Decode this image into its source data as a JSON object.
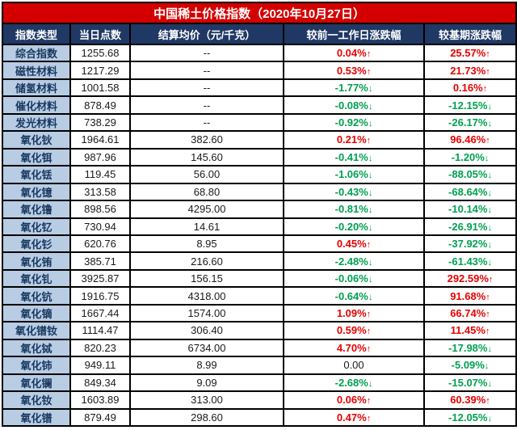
{
  "title": "中国稀土价格指数（2020年10月27日）",
  "columns": {
    "type": "指数类型",
    "points": "当日点数",
    "price": "结算均价（元/千克）",
    "daily_change": "较前一工作日涨跌幅",
    "base_change": "较基期涨跌幅"
  },
  "colors": {
    "title_bg": "#d40000",
    "header_bg": "#1f3864",
    "label_bg": "#b8cce4",
    "label_text": "#17375e",
    "positive": "#e80000",
    "negative": "#00a050"
  },
  "rows": [
    {
      "label": "综合指数",
      "points": "1255.68",
      "price": "--",
      "daily": {
        "t": "0.04%",
        "c": "up"
      },
      "base": {
        "t": "25.57%",
        "c": "up"
      }
    },
    {
      "label": "磁性材料",
      "points": "1217.29",
      "price": "--",
      "daily": {
        "t": "0.53%",
        "c": "up"
      },
      "base": {
        "t": "21.73%",
        "c": "up"
      }
    },
    {
      "label": "储氢材料",
      "points": "1001.58",
      "price": "--",
      "daily": {
        "t": "-1.77%",
        "c": "down"
      },
      "base": {
        "t": "0.16%",
        "c": "up"
      }
    },
    {
      "label": "催化材料",
      "points": "878.49",
      "price": "--",
      "daily": {
        "t": "-0.08%",
        "c": "down"
      },
      "base": {
        "t": "-12.15%",
        "c": "down"
      }
    },
    {
      "label": "发光材料",
      "points": "738.29",
      "price": "--",
      "daily": {
        "t": "-0.92%",
        "c": "down"
      },
      "base": {
        "t": "-26.17%",
        "c": "down"
      }
    },
    {
      "label": "氧化钬",
      "points": "1964.61",
      "price": "382.60",
      "daily": {
        "t": "0.21%",
        "c": "up"
      },
      "base": {
        "t": "96.46%",
        "c": "up"
      }
    },
    {
      "label": "氧化铒",
      "points": "987.96",
      "price": "145.60",
      "daily": {
        "t": "-0.41%",
        "c": "down"
      },
      "base": {
        "t": "-1.20%",
        "c": "down"
      }
    },
    {
      "label": "氧化铥",
      "points": "119.45",
      "price": "56.00",
      "daily": {
        "t": "-1.06%",
        "c": "down"
      },
      "base": {
        "t": "-88.05%",
        "c": "down"
      }
    },
    {
      "label": "氧化镱",
      "points": "313.58",
      "price": "68.80",
      "daily": {
        "t": "-0.43%",
        "c": "down"
      },
      "base": {
        "t": "-68.64%",
        "c": "down"
      }
    },
    {
      "label": "氧化镥",
      "points": "898.56",
      "price": "4295.00",
      "daily": {
        "t": "-0.81%",
        "c": "down"
      },
      "base": {
        "t": "-10.14%",
        "c": "down"
      }
    },
    {
      "label": "氧化钇",
      "points": "730.94",
      "price": "14.61",
      "daily": {
        "t": "-0.20%",
        "c": "down"
      },
      "base": {
        "t": "-26.91%",
        "c": "down"
      }
    },
    {
      "label": "氧化钐",
      "points": "620.76",
      "price": "8.95",
      "daily": {
        "t": "0.45%",
        "c": "up"
      },
      "base": {
        "t": "-37.92%",
        "c": "down"
      }
    },
    {
      "label": "氧化铕",
      "points": "385.71",
      "price": "216.60",
      "daily": {
        "t": "-2.48%",
        "c": "down"
      },
      "base": {
        "t": "-61.43%",
        "c": "down"
      }
    },
    {
      "label": "氧化钆",
      "points": "3925.87",
      "price": "156.15",
      "daily": {
        "t": "-0.06%",
        "c": "down"
      },
      "base": {
        "t": "292.59%",
        "c": "up"
      }
    },
    {
      "label": "氧化钪",
      "points": "1916.75",
      "price": "4318.00",
      "daily": {
        "t": "-0.64%",
        "c": "down"
      },
      "base": {
        "t": "91.68%",
        "c": "up"
      }
    },
    {
      "label": "氧化镝",
      "points": "1667.44",
      "price": "1574.00",
      "daily": {
        "t": "1.09%",
        "c": "up"
      },
      "base": {
        "t": "66.74%",
        "c": "up"
      }
    },
    {
      "label": "氧化镨钕",
      "points": "1114.47",
      "price": "306.40",
      "daily": {
        "t": "0.59%",
        "c": "up"
      },
      "base": {
        "t": "11.45%",
        "c": "up"
      }
    },
    {
      "label": "氧化钪",
      "points": "820.23",
      "price": "6734.00",
      "daily": {
        "t": "4.70%",
        "c": "up"
      },
      "base": {
        "t": "-17.98%",
        "c": "down"
      }
    },
    {
      "label": "氧化铈",
      "points": "949.11",
      "price": "8.99",
      "daily": {
        "t": "0.00",
        "c": "flat"
      },
      "base": {
        "t": "-5.09%",
        "c": "down"
      }
    },
    {
      "label": "氧化镧",
      "points": "849.34",
      "price": "9.09",
      "daily": {
        "t": "-2.68%",
        "c": "down"
      },
      "base": {
        "t": "-15.07%",
        "c": "down"
      }
    },
    {
      "label": "氧化钕",
      "points": "1603.89",
      "price": "313.00",
      "daily": {
        "t": "0.06%",
        "c": "up"
      },
      "base": {
        "t": "60.39%",
        "c": "up"
      }
    },
    {
      "label": "氧化镨",
      "points": "879.49",
      "price": "298.60",
      "daily": {
        "t": "0.47%",
        "c": "up"
      },
      "base": {
        "t": "-12.05%",
        "c": "down"
      }
    }
  ],
  "row_labels_fix": {
    "17": "氧化铽"
  }
}
